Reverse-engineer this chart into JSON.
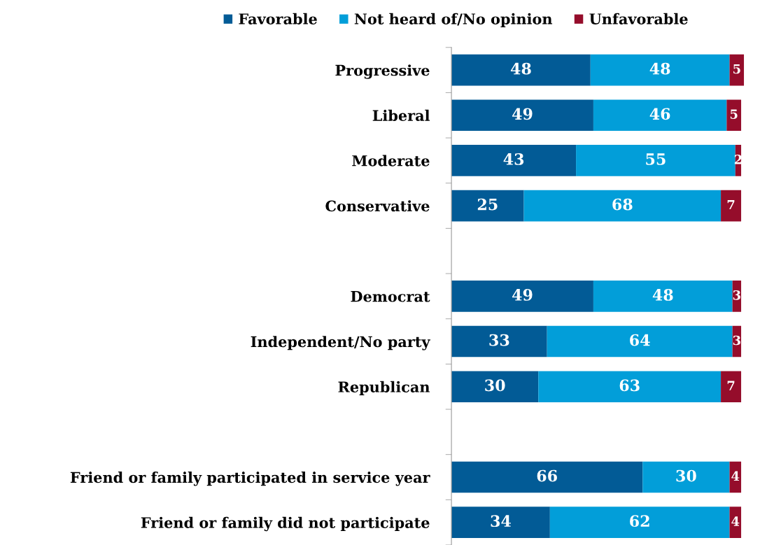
{
  "chart_data": {
    "type": "bar",
    "orientation": "horizontal",
    "stacked": true,
    "data_labels": true,
    "legend": "top",
    "grid": false,
    "categories": [
      "Progressive",
      "Liberal",
      "Moderate",
      "Conservative",
      null,
      "Democrat",
      "Independent/No party",
      "Republican",
      null,
      "Friend or family participated in service year",
      "Friend or family did not participate"
    ],
    "series": [
      {
        "name": "Favorable",
        "color": "#025b96",
        "values": [
          48,
          49,
          43,
          25,
          null,
          49,
          33,
          30,
          null,
          66,
          34
        ]
      },
      {
        "name": "Not heard of/No opinion",
        "color": "#029ed9",
        "values": [
          48,
          46,
          55,
          68,
          null,
          48,
          64,
          63,
          null,
          30,
          62
        ]
      },
      {
        "name": "Unfavorable",
        "color": "#950d2b",
        "values": [
          5,
          5,
          2,
          7,
          null,
          3,
          3,
          7,
          null,
          4,
          4
        ]
      }
    ]
  }
}
